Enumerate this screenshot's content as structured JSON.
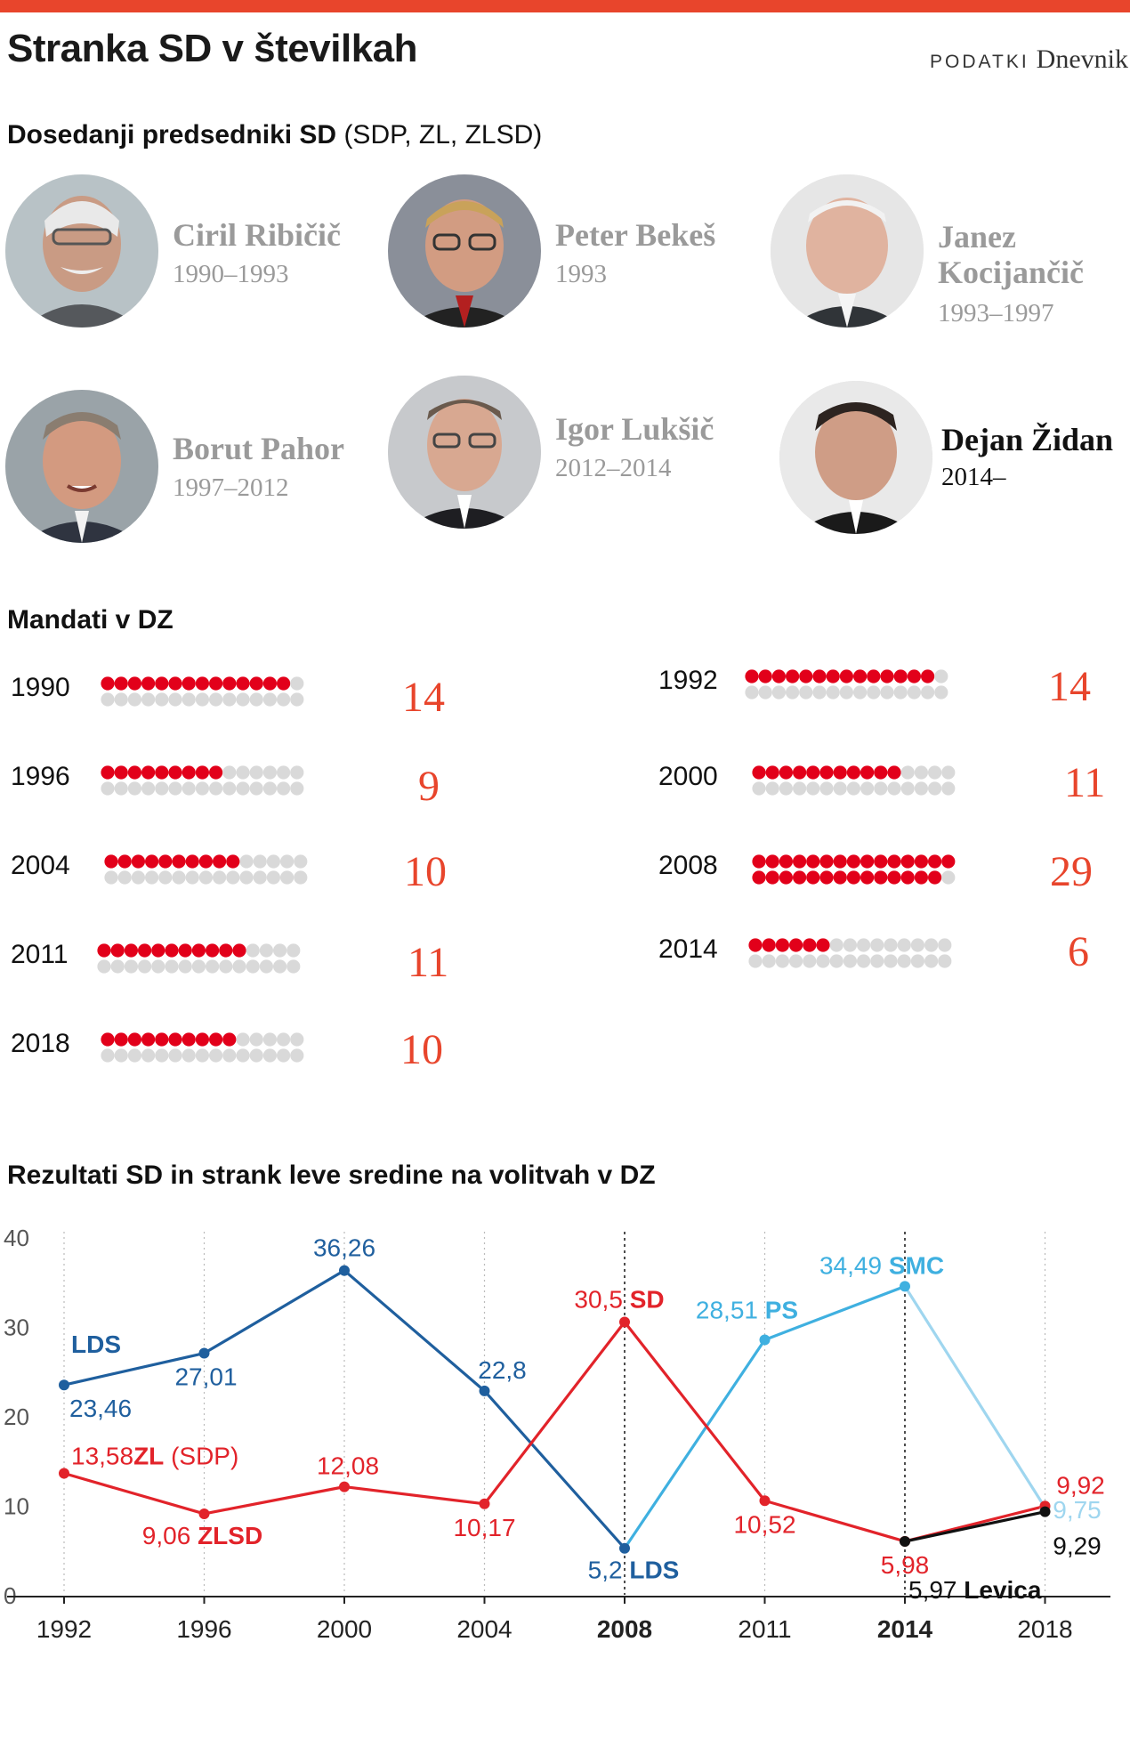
{
  "header": {
    "title": "Stranka SD v številkah",
    "source_label": "PODATKI",
    "source_name": "Dnevnik"
  },
  "presidents_section": {
    "title_bold": "Dosedanji predsedniki SD",
    "title_light": "(SDP, ZL, ZLSD)",
    "presidents": [
      {
        "name": "Ciril Ribičič",
        "years": "1990–1993"
      },
      {
        "name": "Peter Bekeš",
        "years": "1993"
      },
      {
        "name_line1": "Janez",
        "name_line2": "Kocijančič",
        "years": "1993–1997"
      },
      {
        "name": "Borut Pahor",
        "years": "1997–2012"
      },
      {
        "name": "Igor Lukšič",
        "years": "2012–2014"
      },
      {
        "name": "Dejan Židan",
        "years": "2014–",
        "current": true
      }
    ]
  },
  "mandates_section": {
    "title": "Mandati v DZ",
    "total_seats": 90,
    "rows": [
      {
        "year": "1990",
        "seats": 14,
        "label": "14"
      },
      {
        "year": "1992",
        "seats": 14,
        "label": "14"
      },
      {
        "year": "1996",
        "seats": 9,
        "label": "9"
      },
      {
        "year": "2000",
        "seats": 11,
        "label": "11"
      },
      {
        "year": "2004",
        "seats": 10,
        "label": "10"
      },
      {
        "year": "2008",
        "seats": 29,
        "label": "29"
      },
      {
        "year": "2011",
        "seats": 11,
        "label": "11"
      },
      {
        "year": "2014",
        "seats": 6,
        "label": "6"
      },
      {
        "year": "2018",
        "seats": 10,
        "label": "10"
      }
    ]
  },
  "colors": {
    "accent": "#e8452c",
    "seat_red": "#e2001a",
    "seat_grey": "#d9d9d9",
    "sd_line": "#e2232a",
    "lds_line": "#1f5f9e",
    "ps_smc_line": "#3fb0e0",
    "smc_fade": "#9fd6ef",
    "levica_line": "#111111"
  },
  "chart_data": {
    "type": "line",
    "title": "Rezultati SD in strank leve sredine na volitvah v DZ",
    "categories": [
      "1992",
      "1996",
      "2000",
      "2004",
      "2008",
      "2011",
      "2014",
      "2018"
    ],
    "bold_categories": [
      "2008",
      "2014"
    ],
    "ylim": [
      0,
      40
    ],
    "yticks": [
      "0",
      "10",
      "20",
      "30",
      "40"
    ],
    "series": [
      {
        "name": "SD (SDP, ZL, ZLSD)",
        "color": "#e2232a",
        "values": [
          13.58,
          9.06,
          12.08,
          10.17,
          30.5,
          10.52,
          5.98,
          9.92
        ],
        "labels": [
          "13,58",
          "9,06",
          "12,08",
          "10,17",
          "30,5",
          "10,52",
          "5,98",
          "9,92"
        ],
        "tags": [
          "ZL (SDP)",
          "ZLSD",
          "",
          "",
          "SD",
          "",
          "",
          ""
        ]
      },
      {
        "name": "LDS",
        "color": "#1f5f9e",
        "x": [
          "1992",
          "1996",
          "2000",
          "2004",
          "2008"
        ],
        "values": [
          23.46,
          27.01,
          36.26,
          22.8,
          5.2
        ],
        "labels": [
          "23,46",
          "27,01",
          "36,26",
          "22,8",
          "5,2"
        ],
        "tag_start": "LDS",
        "tag_end": "LDS"
      },
      {
        "name": "PS / SMC",
        "color": "#3fb0e0",
        "x": [
          "2008",
          "2011",
          "2014",
          "2018"
        ],
        "values": [
          5.2,
          28.51,
          34.49,
          9.75
        ],
        "labels": [
          "",
          "28,51",
          "34,49",
          "9,75"
        ],
        "tags": [
          "",
          "PS",
          "SMC",
          ""
        ]
      },
      {
        "name": "Levica",
        "color": "#111111",
        "x": [
          "2014",
          "2018"
        ],
        "values": [
          5.97,
          9.29
        ],
        "labels": [
          "5,97",
          "9,29"
        ],
        "tags": [
          "Levica",
          ""
        ]
      }
    ]
  }
}
